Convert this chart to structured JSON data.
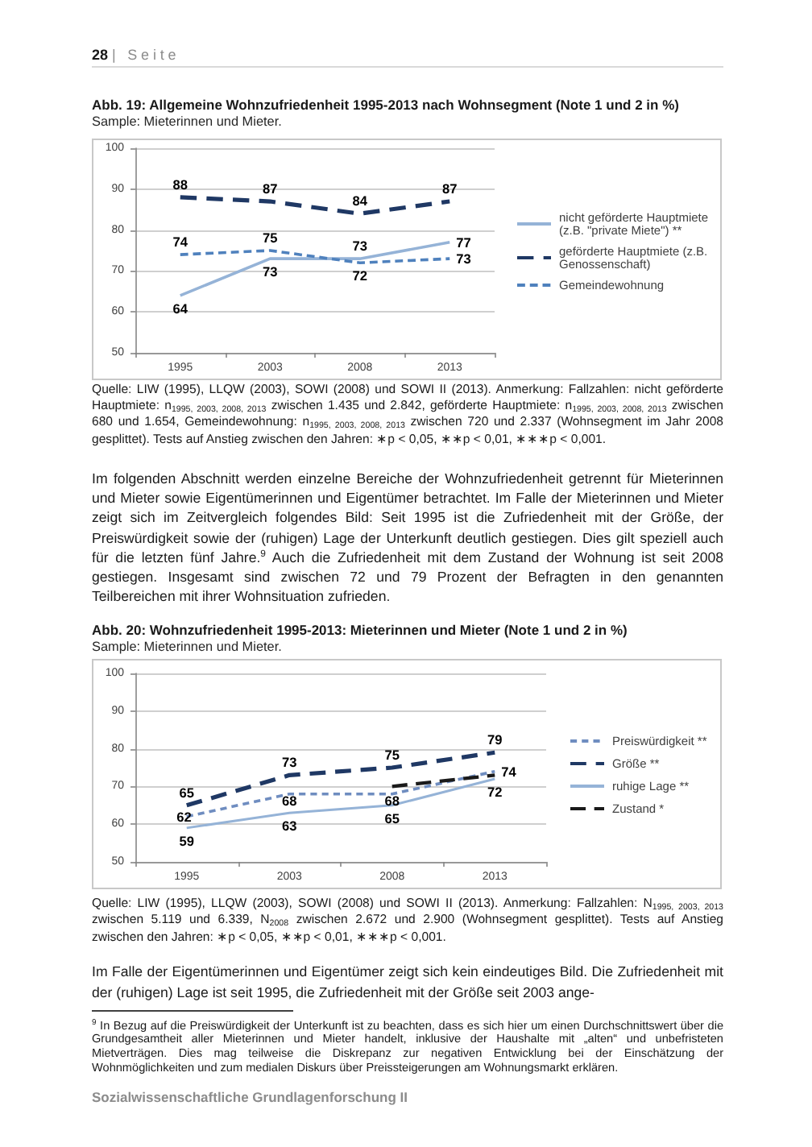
{
  "chart_data": [
    {
      "type": "line",
      "title": "Abb. 19: Allgemeine Wohnzufriedenheit 1995-2013 nach Wohnsegment (Note 1 und 2 in %)",
      "subtitle": "Sample: Mieterinnen und Mieter.",
      "categories": [
        "1995",
        "2003",
        "2008",
        "2013"
      ],
      "series": [
        {
          "name": "nicht geförderte Hauptmiete (z.B. \"private Miete\") **",
          "color": "#95b3d7",
          "line_style": "solid",
          "values": [
            64,
            73,
            73,
            77
          ]
        },
        {
          "name": "geförderte Hauptmiete (z.B. Genossenschaft)",
          "color": "#1f3864",
          "line_style": "dashed",
          "values": [
            88,
            87,
            84,
            87
          ]
        },
        {
          "name": "Gemeindewohnung",
          "color": "#4f81bd",
          "line_style": "dashed",
          "values": [
            74,
            75,
            72,
            73
          ]
        }
      ],
      "ylim": [
        50,
        100
      ],
      "yticks": [
        50,
        60,
        70,
        80,
        90,
        100
      ],
      "grid": "y",
      "legend": "right",
      "marker": "none",
      "data_labels": true,
      "annotations": [
        "28 | Seite",
        "Quelle: LIW (1995), LLQW (2003), SOWI (2008) und SOWI II (2013). Anmerkung:  Fallzahlen: nicht geförderte Hauptmiete: n$_{1995, 2003, 2008, 2013}$ zwischen 1.435 und 2.842, geförderte Hauptmiete: n$_{1995, 2003, 2008, 2013}$ zwischen 680 und 1.654, Gemeindewohnung: n$_{1995, 2003, 2008, 2013}$ zwischen 720 und 2.337 (Wohnsegment im Jahr 2008 gesplittet). Tests auf Anstieg zwischen den Jahren: ∗p < 0,05, ∗∗p < 0,01, ∗∗∗p < 0,001.",
        "Im folgenden Abschnitt werden einzelne Bereiche der Wohnzufriedenheit getrennt für Mieterinnen und Mieter sowie Eigentümerinnen und Eigentümer betrachtet. Im Falle der Mieterinnen und Mieter zeigt sich im Zeitvergleich folgendes Bild: Seit 1995 ist die Zufriedenheit mit der Größe, der Preiswürdigkeit sowie der (ruhigen) Lage der Unterkunft deutlich gestiegen. Dies gilt speziell auch für die letzten fünf Jahre.$^{9}$ Auch die Zufriedenheit mit dem Zustand der Wohnung ist seit 2008 gestiegen. Insgesamt sind zwischen 72 und 79 Prozent der Befragten in den genannten Teilbereichen mit ihrer Wohnsituation zufrieden."
      ]
    },
    {
      "type": "line",
      "title": "Abb. 20: Wohnzufriedenheit 1995-2013: Mieterinnen und Mieter (Note 1 und 2 in %)",
      "subtitle": "Sample: Mieterinnen und Mieter.",
      "categories": [
        "1995",
        "2003",
        "2008",
        "2013"
      ],
      "series": [
        {
          "name": "Preiswürdigkeit **",
          "color": "#6f8dc0",
          "line_style": "dashed",
          "values": [
            62,
            68,
            68,
            74
          ],
          "value_labels": [
            "62",
            "68",
            "68",
            "74"
          ]
        },
        {
          "name": "Größe **",
          "color": "#1f3864",
          "line_style": "dashed",
          "values": [
            65,
            73,
            75,
            79
          ],
          "value_labels": [
            "65",
            "73",
            "75",
            "79"
          ]
        },
        {
          "name": "ruhige Lage **",
          "color": "#95b3d7",
          "line_style": "solid",
          "values": [
            59,
            63,
            65,
            72
          ],
          "value_labels": [
            "59",
            "63",
            "65",
            "72"
          ]
        },
        {
          "name": "Zustand *",
          "color": "#1a1a1a",
          "line_style": "dashed",
          "values": [
            null,
            null,
            70,
            73
          ]
        }
      ],
      "ylim": [
        50,
        100
      ],
      "yticks": [
        50,
        60,
        70,
        80,
        90,
        100
      ],
      "grid": "y",
      "legend": "right",
      "marker": "none",
      "annotations": [
        "Quelle: LIW (1995), LLQW (2003), SOWI (2008) und SOWI II (2013). Anmerkung: Fallzahlen: N$_{1995, 2003, 2013}$ zwischen 5.119 und 6.339, N$_{2008}$ zwischen 2.672 und 2.900 (Wohnsegment gesplittet). Tests auf Anstieg zwischen den Jahren: ∗p < 0,05, ∗∗p < 0,01, ∗∗∗p < 0,001.",
        "Im Falle der Eigentümerinnen und Eigentümer zeigt sich kein eindeutiges Bild. Die Zufriedenheit mit der (ruhigen) Lage ist seit 1995, die Zufriedenheit mit der Größe seit 2003 ange-",
        "$^{9}$ In Bezug auf die Preiswürdigkeit der Unterkunft ist zu beachten, dass es sich hier um einen Durchschnittswert über die Grundgesamtheit aller Mieterinnen und Mieter handelt, inklusive der Haushalte mit „alten“ und unbefristeten Mietverträgen. Dies mag teilweise die Diskrepanz zur negativen Entwicklung bei der Einschätzung der Wohnmöglichkeiten und zum medialen Diskurs über Preissteigerungen am Wohnungsmarkt erklären.",
        "Sozialwissenschaftliche Grundlagenforschung II"
      ]
    }
  ]
}
